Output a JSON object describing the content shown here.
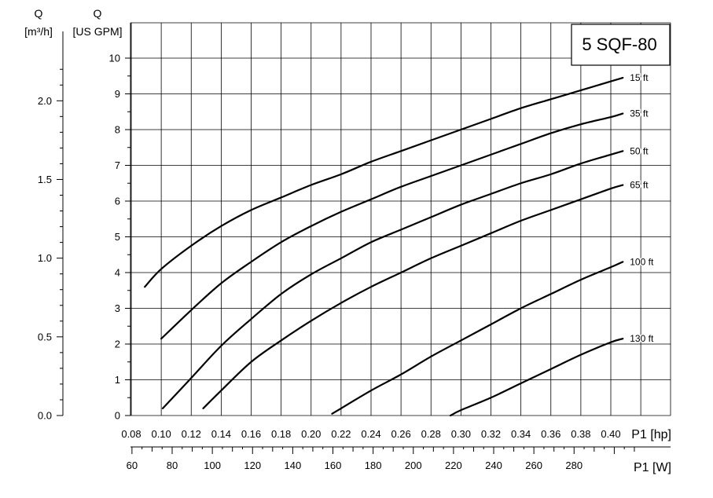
{
  "chart_data": {
    "type": "line",
    "title": "5 SQF-80",
    "y_left": {
      "label": "Q",
      "unit": "[m³/h]",
      "ticks": [
        "0.0",
        "0.5",
        "1.0",
        "1.5",
        "2.0"
      ]
    },
    "y_main": {
      "label": "Q",
      "unit": "[US GPM]",
      "ticks": [
        "0",
        "1",
        "2",
        "3",
        "4",
        "5",
        "6",
        "7",
        "8",
        "9",
        "10"
      ],
      "ylim": [
        0,
        10
      ]
    },
    "x_main": {
      "label": "P1 [hp]",
      "ticks": [
        "0.08",
        "0.10",
        "0.12",
        "0.14",
        "0.16",
        "0.18",
        "0.20",
        "0.22",
        "0.24",
        "0.26",
        "0.28",
        "0.30",
        "0.32",
        "0.34",
        "0.36",
        "0.38",
        "0.40"
      ],
      "xlim": [
        0.08,
        0.405
      ]
    },
    "x_watt": {
      "label": "P1 [W]",
      "ticks": [
        "60",
        "80",
        "100",
        "120",
        "140",
        "160",
        "180",
        "200",
        "220",
        "240",
        "260",
        "280"
      ]
    },
    "grid": true,
    "series": [
      {
        "name": "15 ft",
        "x": [
          0.089,
          0.1,
          0.12,
          0.14,
          0.16,
          0.18,
          0.2,
          0.22,
          0.24,
          0.26,
          0.28,
          0.3,
          0.32,
          0.34,
          0.36,
          0.38,
          0.4,
          0.408
        ],
        "y": [
          3.6,
          4.1,
          4.75,
          5.3,
          5.75,
          6.1,
          6.45,
          6.75,
          7.1,
          7.4,
          7.7,
          8.0,
          8.3,
          8.6,
          8.85,
          9.1,
          9.35,
          9.45
        ]
      },
      {
        "name": "35 ft",
        "x": [
          0.1,
          0.12,
          0.14,
          0.16,
          0.18,
          0.2,
          0.22,
          0.24,
          0.26,
          0.28,
          0.3,
          0.32,
          0.34,
          0.36,
          0.38,
          0.4,
          0.408
        ],
        "y": [
          2.15,
          2.95,
          3.7,
          4.3,
          4.85,
          5.3,
          5.7,
          6.05,
          6.4,
          6.7,
          7.0,
          7.3,
          7.6,
          7.9,
          8.15,
          8.35,
          8.45
        ]
      },
      {
        "name": "50 ft",
        "x": [
          0.101,
          0.12,
          0.14,
          0.16,
          0.18,
          0.2,
          0.22,
          0.24,
          0.26,
          0.28,
          0.3,
          0.32,
          0.34,
          0.36,
          0.38,
          0.4,
          0.408
        ],
        "y": [
          0.2,
          1.05,
          1.95,
          2.7,
          3.4,
          3.95,
          4.4,
          4.85,
          5.2,
          5.55,
          5.9,
          6.2,
          6.5,
          6.75,
          7.05,
          7.3,
          7.4
        ]
      },
      {
        "name": "65 ft",
        "x": [
          0.128,
          0.14,
          0.16,
          0.18,
          0.2,
          0.22,
          0.24,
          0.26,
          0.28,
          0.3,
          0.32,
          0.34,
          0.36,
          0.38,
          0.4,
          0.408
        ],
        "y": [
          0.2,
          0.7,
          1.5,
          2.1,
          2.65,
          3.15,
          3.6,
          4.0,
          4.4,
          4.75,
          5.1,
          5.45,
          5.75,
          6.05,
          6.35,
          6.45
        ]
      },
      {
        "name": "100 ft",
        "x": [
          0.214,
          0.22,
          0.24,
          0.26,
          0.28,
          0.3,
          0.32,
          0.34,
          0.36,
          0.38,
          0.4,
          0.408
        ],
        "y": [
          0.05,
          0.2,
          0.7,
          1.15,
          1.65,
          2.1,
          2.55,
          3.0,
          3.4,
          3.8,
          4.15,
          4.3
        ]
      },
      {
        "name": "130 ft",
        "x": [
          0.293,
          0.3,
          0.32,
          0.34,
          0.36,
          0.38,
          0.4,
          0.408
        ],
        "y": [
          0.0,
          0.15,
          0.5,
          0.9,
          1.3,
          1.7,
          2.05,
          2.15
        ]
      }
    ]
  }
}
